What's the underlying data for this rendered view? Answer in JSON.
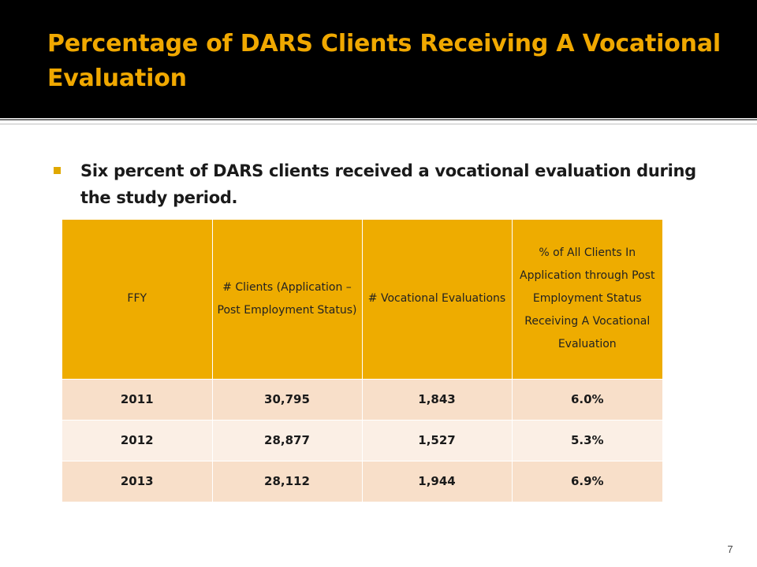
{
  "slide": {
    "title": "Percentage of DARS Clients Receiving A Vocational Evaluation",
    "bullet": "Six percent of DARS clients received a vocational evaluation during the study period.",
    "page_number": "7",
    "colors": {
      "title": "#F0A800",
      "header_fill": "#EEAC00",
      "row_odd": "#F8DFC9",
      "row_even": "#FBEFE5"
    }
  },
  "table": {
    "headers": [
      "FFY",
      "# Clients (Application –Post Employment Status)",
      "# Vocational Evaluations",
      "% of All Clients In Application through Post Employment Status Receiving A Vocational Evaluation"
    ],
    "rows": [
      [
        "2011",
        "30,795",
        "1,843",
        "6.0%"
      ],
      [
        "2012",
        "28,877",
        "1,527",
        "5.3%"
      ],
      [
        "2013",
        "28,112",
        "1,944",
        "6.9%"
      ]
    ]
  }
}
